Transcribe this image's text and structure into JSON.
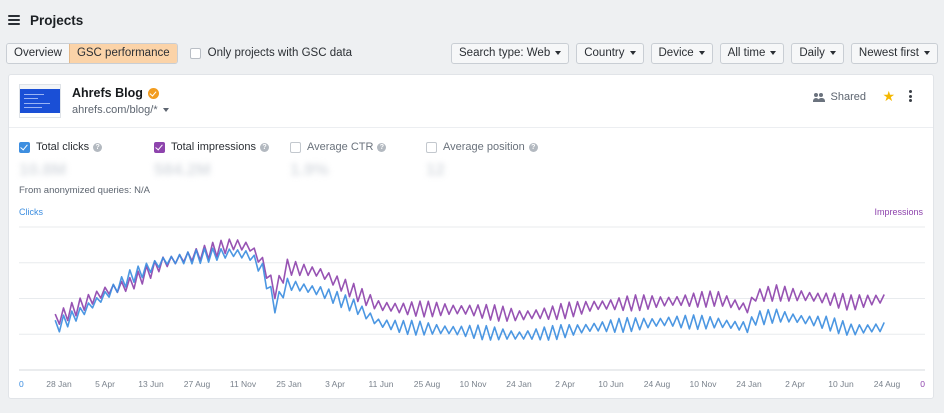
{
  "header": {
    "title": "Projects"
  },
  "toolbar": {
    "tabs": [
      {
        "label": "Overview",
        "active": false
      },
      {
        "label": "GSC performance",
        "active": true
      }
    ],
    "gsc_only_label": "Only projects with GSC data",
    "dropdowns": [
      "Search type: Web",
      "Country",
      "Device",
      "All time",
      "Daily",
      "Newest first"
    ]
  },
  "project": {
    "name": "Ahrefs Blog",
    "url": "ahrefs.com/blog/*",
    "shared_label": "Shared",
    "metrics": [
      {
        "label": "Total clicks",
        "value": "10.8M",
        "enabled": true,
        "color": "#3d8ee0"
      },
      {
        "label": "Total impressions",
        "value": "584.2M",
        "enabled": true,
        "color": "#8e44ad"
      },
      {
        "label": "Average CTR",
        "value": "1.9%",
        "enabled": false,
        "color": "#c3c8ce"
      },
      {
        "label": "Average position",
        "value": "12",
        "enabled": false,
        "color": "#c3c8ce"
      }
    ],
    "anon_label": "From anonymized queries:",
    "anon_value": "N/A"
  },
  "chart_data": {
    "type": "line",
    "y_left_label": "Clicks",
    "y_right_label": "Impressions",
    "y_left_min": "0",
    "y_right_min": "0",
    "grid": true,
    "x_tick_labels": [
      "28 Jan",
      "5 Apr",
      "13 Jun",
      "27 Aug",
      "11 Nov",
      "25 Jan",
      "3 Apr",
      "11 Jun",
      "25 Aug",
      "10 Nov",
      "24 Jan",
      "2 Apr",
      "10 Jun",
      "24 Aug",
      "10 Nov",
      "24 Jan",
      "2 Apr",
      "10 Jun",
      "24 Aug"
    ],
    "x_knots": [
      0,
      0.03,
      0.06,
      0.09,
      0.13,
      0.18,
      0.215,
      0.235,
      0.25,
      0.265,
      0.28,
      0.32,
      0.36,
      0.39,
      0.42,
      0.5,
      0.56,
      0.6,
      0.65,
      0.7,
      0.74,
      0.8,
      0.835,
      0.845,
      0.87,
      0.93,
      0.96,
      1
    ],
    "series": [
      {
        "name": "Impressions",
        "color": "#8e44ad",
        "y": [
          0.35,
          0.45,
          0.55,
          0.6,
          0.75,
          0.82,
          0.88,
          0.86,
          0.75,
          0.55,
          0.72,
          0.68,
          0.55,
          0.45,
          0.43,
          0.42,
          0.38,
          0.4,
          0.45,
          0.47,
          0.48,
          0.5,
          0.43,
          0.52,
          0.54,
          0.5,
          0.47,
          0.5
        ],
        "amp": 0.11
      },
      {
        "name": "Clicks",
        "color": "#3d8ee0",
        "y": [
          0.3,
          0.4,
          0.52,
          0.65,
          0.76,
          0.8,
          0.82,
          0.8,
          0.7,
          0.45,
          0.6,
          0.55,
          0.45,
          0.33,
          0.3,
          0.27,
          0.24,
          0.26,
          0.3,
          0.32,
          0.34,
          0.33,
          0.3,
          0.36,
          0.38,
          0.33,
          0.28,
          0.3
        ],
        "amp": 0.1
      }
    ]
  },
  "colors": {
    "accent_tab": "#fbd3a8",
    "clicks": "#3d8ee0",
    "impressions": "#8e44ad",
    "star": "#f5b800"
  }
}
